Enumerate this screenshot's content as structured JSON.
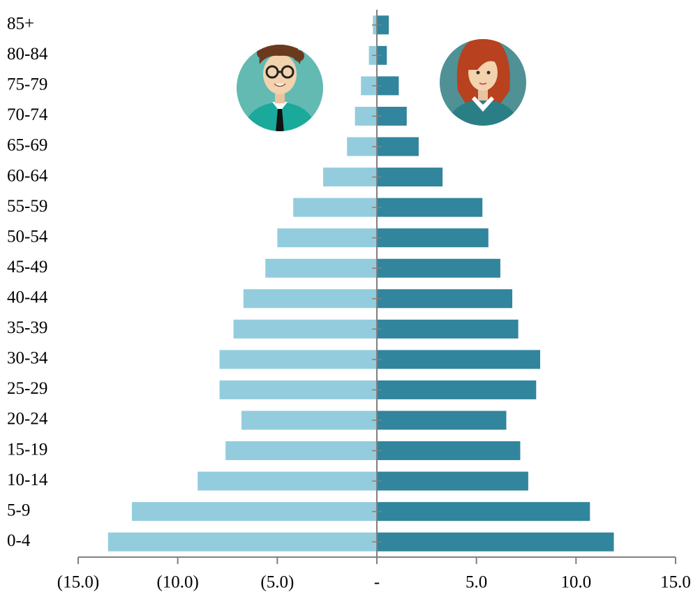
{
  "chart_data": {
    "type": "pyramid",
    "categories": [
      "0-4",
      "5-9",
      "10-14",
      "15-19",
      "20-24",
      "25-29",
      "30-34",
      "35-39",
      "40-44",
      "45-49",
      "50-54",
      "55-59",
      "60-64",
      "65-69",
      "70-74",
      "75-79",
      "80-84",
      "85+"
    ],
    "series": [
      {
        "color": "#93cddd",
        "values": [
          -13.5,
          -12.3,
          -9.0,
          -7.6,
          -6.8,
          -7.9,
          -7.9,
          -7.2,
          -6.7,
          -5.6,
          -5.0,
          -4.2,
          -2.7,
          -1.5,
          -1.1,
          -0.8,
          -0.4,
          -0.2
        ]
      },
      {
        "color": "#31859c",
        "values": [
          11.9,
          10.7,
          7.6,
          7.2,
          6.5,
          8.0,
          8.2,
          7.1,
          6.8,
          6.2,
          5.6,
          5.3,
          3.3,
          2.1,
          1.5,
          1.1,
          0.5,
          0.6
        ]
      }
    ],
    "xlim": [
      -15,
      15
    ],
    "xticks": [
      {
        "value": -15,
        "label": "(15.0)"
      },
      {
        "value": -10,
        "label": "(10.0)"
      },
      {
        "value": -5,
        "label": "(5.0)"
      },
      {
        "value": 0,
        "label": "-"
      },
      {
        "value": 5,
        "label": "5.0"
      },
      {
        "value": 10,
        "label": "10.0"
      },
      {
        "value": 15,
        "label": "15.0"
      }
    ]
  }
}
